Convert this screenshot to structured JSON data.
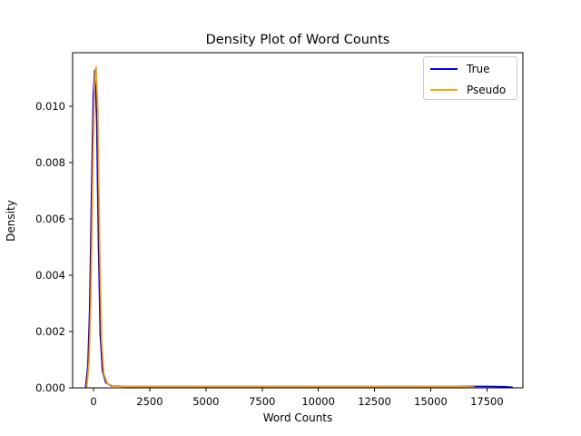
{
  "figure": {
    "background": "#ffffff",
    "spine_color": "#000000",
    "tick_color": "#000000"
  },
  "chart_data": {
    "type": "line",
    "title": "Density Plot of Word Counts",
    "xlabel": "Word Counts",
    "ylabel": "Density",
    "grid": false,
    "xlim": [
      -930,
      19100
    ],
    "ylim": [
      0,
      0.0119
    ],
    "xticks": [
      0,
      2500,
      5000,
      7500,
      10000,
      12500,
      15000,
      17500
    ],
    "xtick_labels": [
      "0",
      "2500",
      "5000",
      "7500",
      "10000",
      "12500",
      "15000",
      "17500"
    ],
    "yticks": [
      0.0,
      0.002,
      0.004,
      0.006,
      0.008,
      0.01
    ],
    "ytick_labels": [
      "0.000",
      "0.002",
      "0.004",
      "0.006",
      "0.008",
      "0.010"
    ],
    "legend": {
      "position": "upper right",
      "entries": [
        {
          "label": "True",
          "color": "#0000ff"
        },
        {
          "label": "Pseudo",
          "color": "#ffa500"
        }
      ]
    },
    "series": [
      {
        "name": "True",
        "color": "#0000ff",
        "linewidth": 1.7,
        "x": [
          -350,
          -250,
          -170,
          -90,
          -10,
          60,
          140,
          220,
          300,
          400,
          550,
          800,
          1500,
          3000,
          8000,
          13000,
          16500,
          17500,
          18300,
          18650
        ],
        "y": [
          1e-05,
          0.0008,
          0.0028,
          0.0068,
          0.0104,
          0.01128,
          0.0096,
          0.0052,
          0.0019,
          0.0006,
          0.00018,
          7e-05,
          5e-05,
          5e-05,
          5e-05,
          5e-05,
          5e-05,
          5e-05,
          4e-05,
          2e-05
        ]
      },
      {
        "name": "Pseudo",
        "color": "#ffa500",
        "linewidth": 1.7,
        "x": [
          -300,
          -200,
          -120,
          -40,
          40,
          115,
          195,
          275,
          360,
          460,
          620,
          900,
          1700,
          3500,
          9000,
          14000,
          16000,
          16950
        ],
        "y": [
          1e-05,
          0.0009,
          0.003,
          0.0072,
          0.0107,
          0.01141,
          0.0098,
          0.005,
          0.0017,
          0.0005,
          0.00015,
          6e-05,
          5e-05,
          5e-05,
          5e-05,
          5e-05,
          5e-05,
          3e-05
        ]
      }
    ],
    "peak": {
      "x_approx": 80,
      "density_approx": 0.0114
    }
  }
}
